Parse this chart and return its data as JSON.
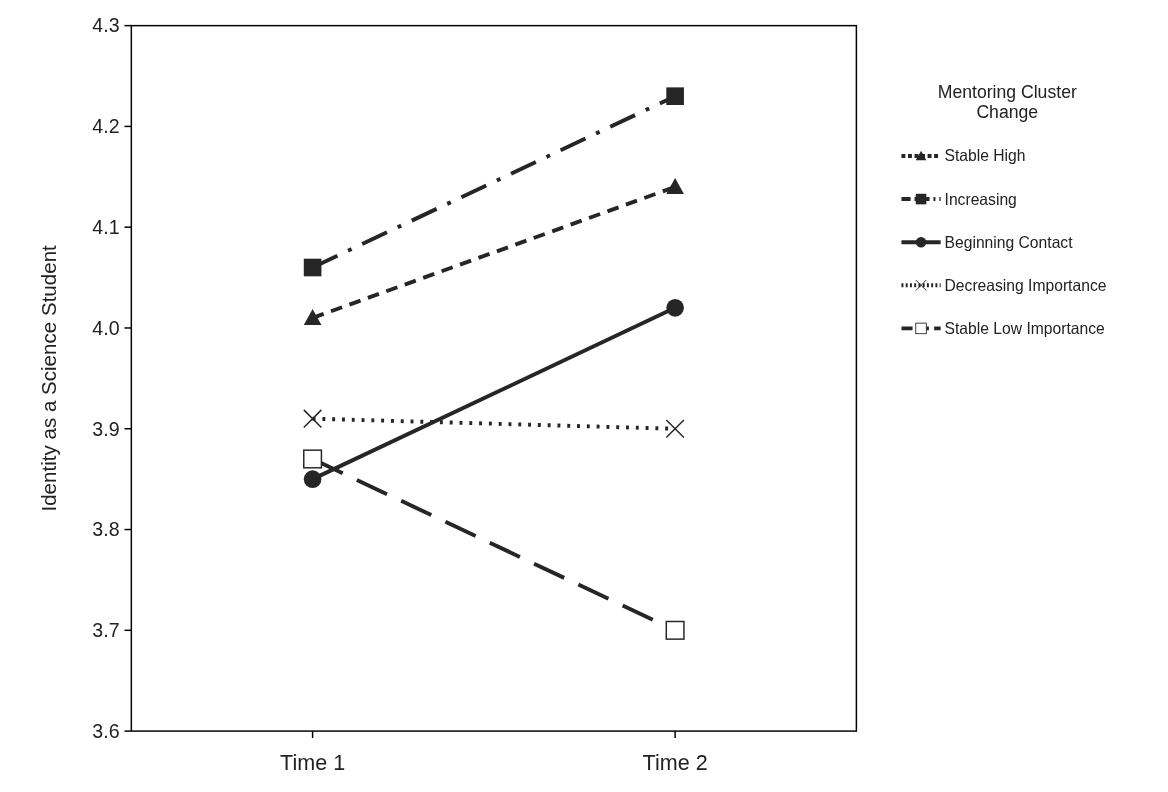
{
  "chart_data": {
    "type": "line",
    "ylabel": "Identity as a Science Student",
    "legend_title": "Mentoring Cluster Change",
    "categories": [
      "Time 1",
      "Time 2"
    ],
    "ylim": [
      3.6,
      4.3
    ],
    "yticks": [
      {
        "value": 3.6,
        "label": "3.6"
      },
      {
        "value": 3.7,
        "label": "3.7"
      },
      {
        "value": 3.8,
        "label": "3.8"
      },
      {
        "value": 3.9,
        "label": "3.9"
      },
      {
        "value": 4,
        "label": "4.0"
      },
      {
        "value": 4.1,
        "label": "4.1"
      },
      {
        "value": 4.2,
        "label": "4.2"
      },
      {
        "value": 4.3,
        "label": "4.3"
      }
    ],
    "legend": "top right",
    "grid": false,
    "series": [
      {
        "name": "Stable High",
        "color": "#262626",
        "values": [
          4.01,
          4.14
        ],
        "marker": "triangle",
        "line_style": "dashed"
      },
      {
        "name": "Increasing",
        "color": "#262626",
        "values": [
          4.06,
          4.23
        ],
        "marker": "square",
        "line_style": "dashdot"
      },
      {
        "name": "Beginning Contact",
        "color": "#262626",
        "values": [
          3.85,
          4.02
        ],
        "marker": "circle",
        "line_style": "solid"
      },
      {
        "name": "Decreasing Importance",
        "color": "#262626",
        "values": [
          3.91,
          3.9
        ],
        "marker": "cross",
        "line_style": "dotted"
      },
      {
        "name": "Stable Low Importance",
        "color": "#262626",
        "values": [
          3.87,
          3.7
        ],
        "marker": "square_open",
        "line_style": "longdash"
      }
    ]
  }
}
